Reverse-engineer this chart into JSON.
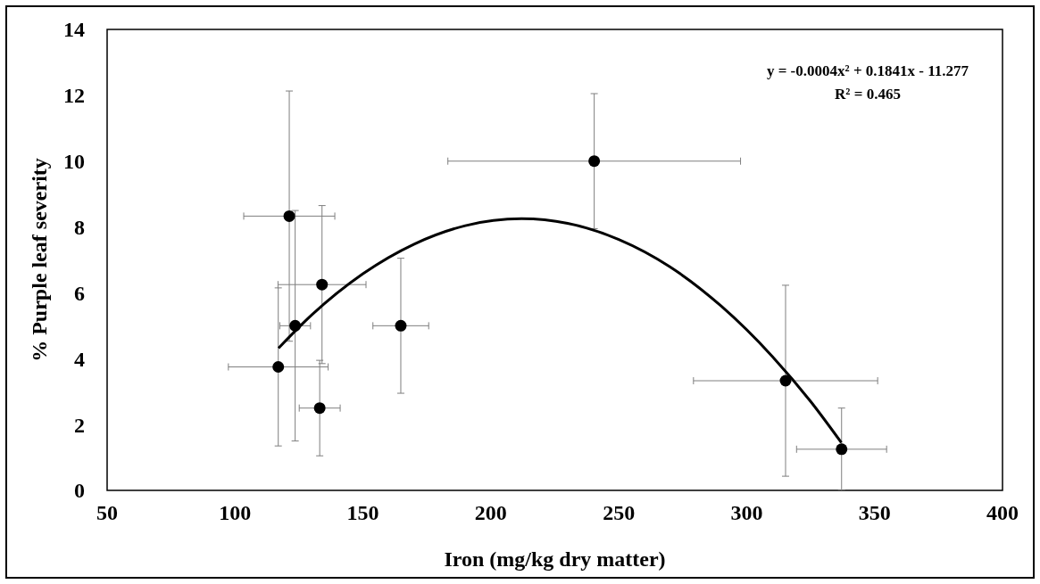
{
  "chart_data": {
    "type": "scatter",
    "xlabel": "Iron (mg/kg dry matter)",
    "ylabel": "% Purple leaf severity",
    "annotations": [
      "y = -0.0004x² + 0.1841x - 11.277",
      "R² = 0.465"
    ],
    "xlim": [
      50,
      400
    ],
    "xticks": [
      50,
      100,
      150,
      200,
      250,
      300,
      350,
      400
    ],
    "ylim": [
      0,
      14
    ],
    "yticks": [
      0,
      2,
      4,
      6,
      8,
      10,
      12,
      14
    ],
    "grid": false,
    "series": [
      {
        "color": "#000000",
        "marker": "circle",
        "x": [
          116.9,
          121.2,
          123.5,
          134.0,
          133.1,
          164.8,
          240.4,
          315.2,
          337.1
        ],
        "values": [
          3.75,
          8.33,
          5.0,
          6.25,
          2.5,
          5.0,
          10.0,
          3.33,
          1.25
        ],
        "errors": [
          2.4,
          3.8,
          3.5,
          2.4,
          1.45,
          2.05,
          2.05,
          2.9,
          1.25
        ],
        "xerrors": [
          19.5,
          17.8,
          6,
          17.2,
          8,
          10.9,
          57.2,
          36,
          17.6
        ]
      },
      {
        "type": "line",
        "color": "#000000",
        "marker": "none",
        "line_style": "solid",
        "x": [
          117,
          130,
          150,
          170,
          190,
          212,
          230,
          250,
          270,
          290,
          310,
          325,
          337
        ],
        "values": [
          4.32,
          5.33,
          6.58,
          7.48,
          8.04,
          8.25,
          8.11,
          7.62,
          6.79,
          5.6,
          4.07,
          2.7,
          1.45
        ]
      }
    ]
  }
}
